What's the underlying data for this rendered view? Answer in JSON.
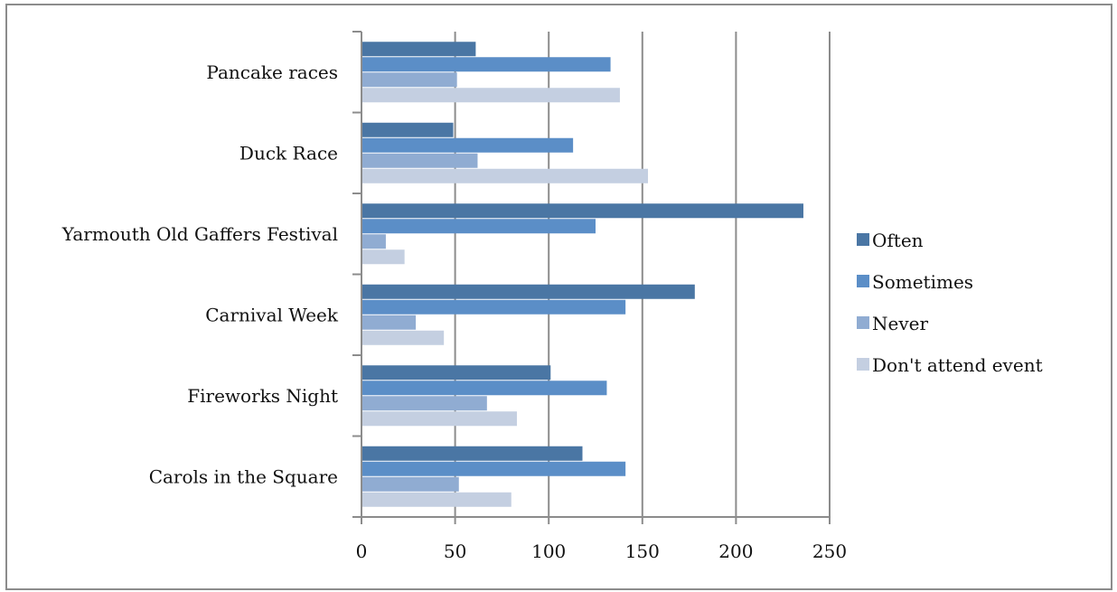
{
  "chart_data": {
    "type": "bar",
    "orientation": "horizontal",
    "title": "",
    "xlabel": "",
    "ylabel": "",
    "categories": [
      "Pancake races",
      "Duck Race",
      "Yarmouth Old Gaffers Festival",
      "Carnival Week",
      "Fireworks Night",
      "Carols in the Square"
    ],
    "series": [
      {
        "name": "Often",
        "color": "#4a76a4",
        "values": [
          61,
          49,
          236,
          178,
          101,
          118
        ]
      },
      {
        "name": "Sometimes",
        "color": "#5b8ec7",
        "values": [
          133,
          113,
          125,
          141,
          131,
          141
        ]
      },
      {
        "name": "Never",
        "color": "#90acd2",
        "values": [
          51,
          62,
          13,
          29,
          67,
          52
        ]
      },
      {
        "name": "Don't attend event",
        "color": "#c4cfe1",
        "values": [
          138,
          153,
          23,
          44,
          83,
          80
        ]
      }
    ],
    "xlim": [
      0,
      250
    ],
    "xticks": [
      0,
      50,
      100,
      150,
      200,
      250
    ],
    "grid": true,
    "legend_position": "right"
  }
}
